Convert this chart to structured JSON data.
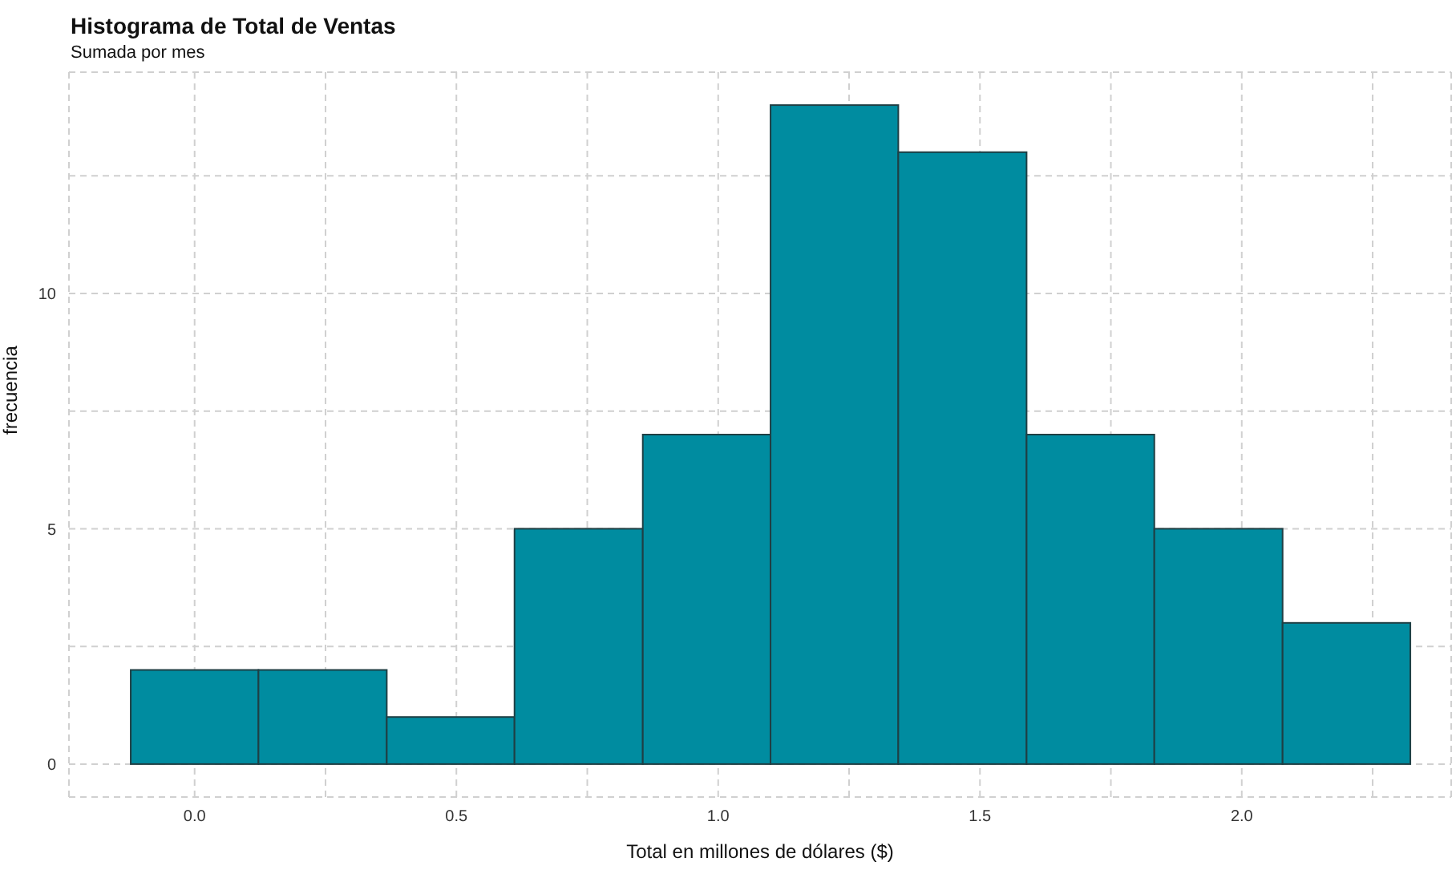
{
  "chart_data": {
    "type": "histogram",
    "title": "Histograma de Total de Ventas",
    "subtitle": "Sumada por mes",
    "xlabel": "Total en millones de dólares ($)",
    "ylabel": "frecuencia",
    "bins": [
      -0.122,
      0.122,
      0.367,
      0.611,
      0.856,
      1.1,
      1.344,
      1.589,
      1.833,
      2.078,
      2.322
    ],
    "values": [
      2,
      2,
      1,
      5,
      7,
      14,
      13,
      7,
      5,
      3
    ],
    "color": "#008ca0",
    "xlim": [
      -0.24,
      2.4
    ],
    "xticks": [
      {
        "value": 0,
        "label": "0.0"
      },
      {
        "value": 0.25,
        "label": null
      },
      {
        "value": 0.5,
        "label": "0.5"
      },
      {
        "value": 0.75,
        "label": null
      },
      {
        "value": 1,
        "label": "1.0"
      },
      {
        "value": 1.25,
        "label": null
      },
      {
        "value": 1.5,
        "label": "1.5"
      },
      {
        "value": 1.75,
        "label": null
      },
      {
        "value": 2,
        "label": "2.0"
      },
      {
        "value": 2.25,
        "label": null
      }
    ],
    "ylim": [
      -0.7,
      14.7
    ],
    "yticks": [
      0,
      {
        "value": 2.5,
        "label": null
      },
      5,
      {
        "value": 7.5,
        "label": null
      },
      10,
      {
        "value": 12.5,
        "label": null
      }
    ],
    "grid": true
  }
}
